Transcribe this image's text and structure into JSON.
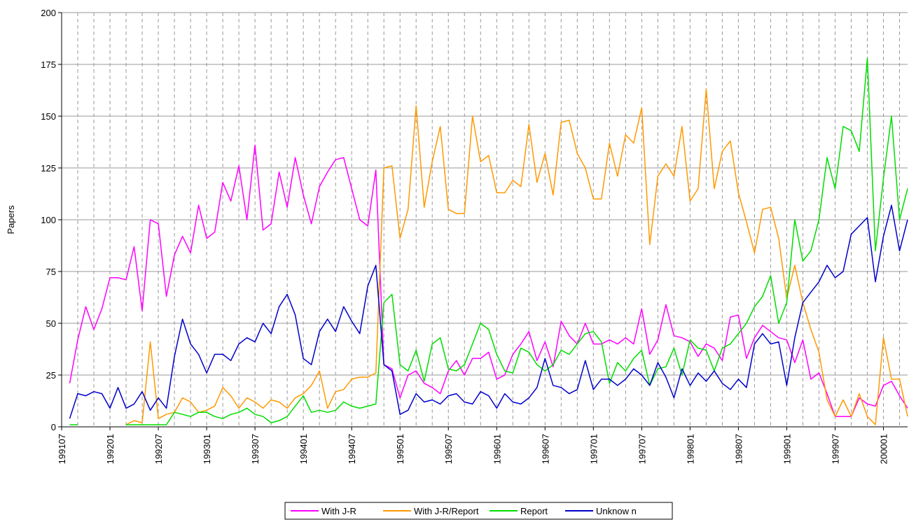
{
  "chart_data": {
    "type": "line",
    "y_label": "Papers",
    "categories": [
      "199107",
      null,
      null,
      null,
      null,
      null,
      "199201",
      null,
      null,
      null,
      null,
      null,
      "199207",
      null,
      null,
      null,
      null,
      null,
      "199301",
      null,
      null,
      null,
      null,
      null,
      "199307",
      null,
      null,
      null,
      null,
      null,
      "199401",
      null,
      null,
      null,
      null,
      null,
      "199407",
      null,
      null,
      null,
      null,
      null,
      "199501",
      null,
      null,
      null,
      null,
      null,
      "199507",
      null,
      null,
      null,
      null,
      null,
      "199601",
      null,
      null,
      null,
      null,
      null,
      "199607",
      null,
      null,
      null,
      null,
      null,
      "199701",
      null,
      null,
      null,
      null,
      null,
      "199707",
      null,
      null,
      null,
      null,
      null,
      "199801",
      null,
      null,
      null,
      null,
      null,
      "199807",
      null,
      null,
      null,
      null,
      null,
      "199901",
      null,
      null,
      null,
      null,
      null,
      "199907",
      null,
      null,
      null,
      null,
      null,
      "200001",
      null,
      null,
      null
    ],
    "series": [
      {
        "name": "With J-R",
        "color": "#ff00ff",
        "values": [
          null,
          21,
          42,
          58,
          47,
          57,
          72,
          72,
          71,
          87,
          56,
          100,
          98,
          63,
          83,
          92,
          84,
          107,
          91,
          94,
          118,
          109,
          126,
          100,
          136,
          95,
          98,
          123,
          106,
          130,
          112,
          98,
          116,
          123,
          129,
          130,
          115,
          100,
          97,
          124,
          30,
          28,
          14,
          25,
          27,
          21,
          19,
          16,
          27,
          32,
          25,
          33,
          33,
          36,
          23,
          25,
          35,
          40,
          46,
          32,
          41,
          29,
          51,
          44,
          40,
          50,
          40,
          40,
          42,
          40,
          43,
          40,
          57,
          35,
          42,
          59,
          44,
          43,
          41,
          34,
          40,
          38,
          32,
          53,
          54,
          33,
          43,
          49,
          46,
          43,
          42,
          31,
          42,
          23,
          26,
          16,
          5,
          5,
          5,
          14,
          11,
          10,
          20,
          22,
          15,
          9
        ]
      },
      {
        "name": "With J-R/Report",
        "color": "#ff9900",
        "values": [
          null,
          null,
          null,
          null,
          null,
          null,
          null,
          null,
          1,
          3,
          2,
          41,
          4,
          6,
          7,
          14,
          12,
          7,
          8,
          10,
          19,
          15,
          9,
          14,
          12,
          9,
          13,
          12,
          9,
          14,
          16,
          20,
          27,
          9,
          17,
          18,
          23,
          24,
          24,
          26,
          125,
          126,
          91,
          105,
          155,
          106,
          128,
          145,
          105,
          103,
          103,
          150,
          128,
          131,
          113,
          113,
          119,
          116,
          146,
          118,
          132,
          112,
          147,
          148,
          132,
          125,
          110,
          110,
          137,
          121,
          141,
          137,
          154,
          88,
          121,
          127,
          121,
          145,
          109,
          115,
          163,
          115,
          133,
          138,
          113,
          99,
          84,
          105,
          106,
          91,
          62,
          78,
          60,
          47,
          36,
          13,
          5,
          13,
          5,
          16,
          5,
          1,
          43,
          23,
          23,
          5
        ]
      },
      {
        "name": "Report",
        "color": "#00dd00",
        "values": [
          null,
          1,
          1,
          null,
          null,
          null,
          null,
          null,
          1,
          1,
          1,
          1,
          1,
          1,
          7,
          6,
          5,
          7,
          7,
          5,
          4,
          6,
          7,
          9,
          6,
          5,
          2,
          3,
          5,
          10,
          15,
          7,
          8,
          7,
          8,
          12,
          10,
          9,
          10,
          11,
          60,
          64,
          30,
          27,
          37,
          22,
          40,
          43,
          28,
          27,
          30,
          40,
          50,
          47,
          35,
          27,
          26,
          38,
          36,
          30,
          27,
          30,
          37,
          35,
          40,
          45,
          46,
          41,
          21,
          31,
          27,
          33,
          37,
          20,
          28,
          29,
          38,
          25,
          42,
          38,
          37,
          27,
          38,
          40,
          45,
          50,
          58,
          63,
          73,
          50,
          60,
          100,
          80,
          85,
          100,
          130,
          115,
          145,
          143,
          133,
          178,
          85,
          120,
          150,
          100,
          115
        ]
      },
      {
        "name": "Unknow n",
        "color": "#0000cc",
        "values": [
          null,
          4,
          16,
          15,
          17,
          16,
          9,
          19,
          9,
          11,
          17,
          8,
          14,
          9,
          34,
          52,
          40,
          35,
          26,
          35,
          35,
          32,
          40,
          43,
          41,
          50,
          45,
          58,
          64,
          54,
          33,
          30,
          46,
          52,
          46,
          58,
          51,
          45,
          68,
          78,
          30,
          27,
          6,
          8,
          16,
          12,
          13,
          11,
          15,
          16,
          12,
          11,
          17,
          15,
          9,
          16,
          12,
          11,
          14,
          19,
          33,
          20,
          19,
          16,
          18,
          32,
          18,
          23,
          23,
          20,
          23,
          28,
          25,
          20,
          31,
          24,
          14,
          28,
          20,
          26,
          22,
          27,
          21,
          18,
          23,
          19,
          40,
          45,
          40,
          41,
          20,
          43,
          60,
          65,
          70,
          78,
          72,
          75,
          93,
          97,
          101,
          70,
          92,
          107,
          85,
          100
        ]
      }
    ],
    "ylim": [
      0,
      200
    ],
    "yticks": [
      0,
      25,
      50,
      75,
      100,
      125,
      150,
      175,
      200
    ],
    "grid": true,
    "legend": "bottom"
  }
}
